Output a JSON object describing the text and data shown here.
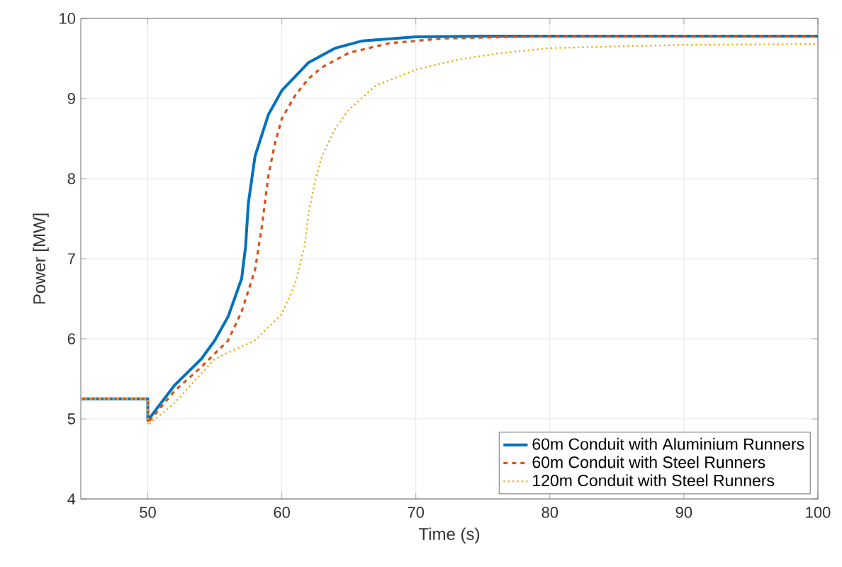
{
  "chart_data": {
    "type": "line",
    "xlabel": "Time (s)",
    "ylabel": "Power [MW]",
    "xlim": [
      45,
      100
    ],
    "ylim": [
      4,
      10
    ],
    "xticks": [
      50,
      60,
      70,
      80,
      90,
      100
    ],
    "yticks": [
      4,
      5,
      6,
      7,
      8,
      9,
      10
    ],
    "grid": true,
    "legend": "bottom right",
    "marker": "none",
    "series": [
      {
        "name": "60m Conduit with Aluminium Runners",
        "color": "#0072bd",
        "line_style": "solid",
        "x": [
          45,
          50,
          50,
          52,
          54,
          55,
          56,
          57,
          57.3,
          57.5,
          58,
          59,
          60,
          62,
          64,
          66,
          70,
          75,
          100
        ],
        "values": [
          5.25,
          5.25,
          4.98,
          5.42,
          5.75,
          5.98,
          6.28,
          6.75,
          7.16,
          7.69,
          8.28,
          8.8,
          9.1,
          9.45,
          9.63,
          9.72,
          9.77,
          9.78,
          9.78
        ]
      },
      {
        "name": "60m Conduit with Steel Runners",
        "color": "#d95319",
        "line_style": "dashed",
        "x": [
          45,
          50,
          50,
          52,
          54,
          56,
          57,
          58,
          58.5,
          59,
          59.5,
          60,
          61,
          62,
          63,
          65,
          68,
          72,
          80,
          100
        ],
        "values": [
          5.25,
          5.25,
          4.95,
          5.35,
          5.65,
          5.98,
          6.34,
          6.86,
          7.39,
          8.04,
          8.45,
          8.75,
          9.04,
          9.25,
          9.39,
          9.57,
          9.69,
          9.75,
          9.78,
          9.78
        ]
      },
      {
        "name": "120m Conduit with Steel Runners",
        "color": "#edb120",
        "line_style": "dotted",
        "x": [
          45,
          50,
          50,
          52,
          55,
          58,
          60,
          61,
          61.7,
          62,
          62.5,
          63,
          64,
          65,
          67,
          70,
          73,
          76,
          80,
          90,
          100
        ],
        "values": [
          5.25,
          5.25,
          4.92,
          5.2,
          5.75,
          5.98,
          6.31,
          6.69,
          7.16,
          7.57,
          7.98,
          8.28,
          8.63,
          8.86,
          9.16,
          9.36,
          9.48,
          9.56,
          9.63,
          9.67,
          9.68
        ]
      }
    ]
  }
}
